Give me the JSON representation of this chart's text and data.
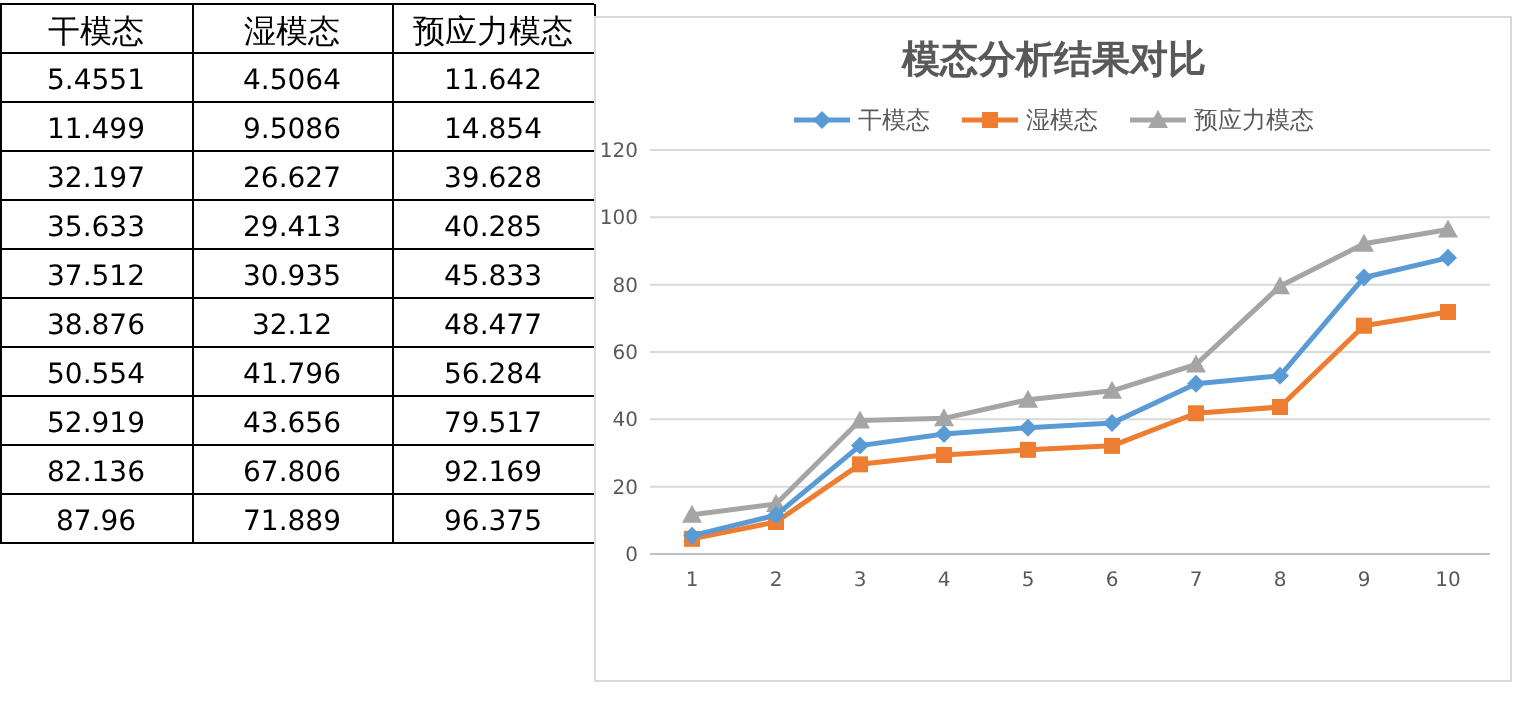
{
  "chart_data": [
    {
      "type": "other",
      "annotations": [
        "干模态",
        "湿模态",
        "预应力模态",
        "5.4551",
        "4.5064",
        "11.642",
        "11.499",
        "9.5086",
        "14.854",
        "32.197",
        "26.627",
        "39.628",
        "35.633",
        "29.413",
        "40.285",
        "37.512",
        "30.935",
        "45.833",
        "38.876",
        "32.12",
        "48.477",
        "50.554",
        "41.796",
        "56.284",
        "52.919",
        "43.656",
        "79.517",
        "82.136",
        "67.806",
        "92.169",
        "87.96",
        "71.889",
        "96.375"
      ]
    },
    {
      "type": "line",
      "title": "模态分析结果对比",
      "categories": [
        "1",
        "2",
        "3",
        "4",
        "5",
        "6",
        "7",
        "8",
        "9",
        "10"
      ],
      "series": [
        {
          "name": "干模态",
          "color": "#5b9bd5",
          "marker": "diamond",
          "values": [
            5.4551,
            11.499,
            32.197,
            35.633,
            37.512,
            38.876,
            50.554,
            52.919,
            82.136,
            87.96
          ]
        },
        {
          "name": "湿模态",
          "color": "#ed7d31",
          "marker": "square",
          "values": [
            4.5064,
            9.5086,
            26.627,
            29.413,
            30.935,
            32.12,
            41.796,
            43.656,
            67.806,
            71.889
          ]
        },
        {
          "name": "预应力模态",
          "color": "#a5a5a5",
          "marker": "triangle",
          "values": [
            11.642,
            14.854,
            39.628,
            40.285,
            45.833,
            48.477,
            56.284,
            79.517,
            92.169,
            96.375
          ]
        }
      ],
      "ylim": [
        0,
        120
      ],
      "yticks": [
        0,
        20,
        40,
        60,
        80,
        100,
        120
      ],
      "grid": "y",
      "legend": "top",
      "line_style": "solid"
    }
  ]
}
